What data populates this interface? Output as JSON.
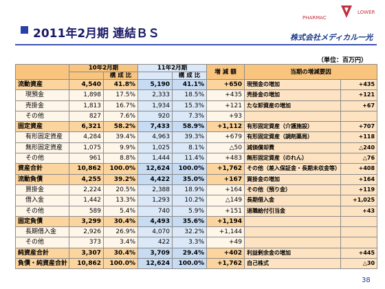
{
  "header": {
    "title": "2011年2月期 連結ＢＳ",
    "logo_top": "PHARMAC",
    "logo_bottom": "LOWER",
    "company": "株式会社メディカル一光",
    "unit": "（単位：百万円）"
  },
  "table": {
    "columns": {
      "period_prev": "10年2月期",
      "ratio_prev": "構 成 比",
      "period_curr": "11年2月期",
      "ratio_curr": "構 成 比",
      "change": "増 減 額",
      "factors": "当期の増減要因"
    },
    "rows": [
      {
        "label": "流動資産",
        "prev": "4,540",
        "prev_ratio": "41.8%",
        "curr": "5,190",
        "curr_ratio": "41.1%",
        "change": "+650",
        "factor": "現預金の増加",
        "factor_amount": "+435"
      },
      {
        "label": "現預金",
        "prev": "1,898",
        "prev_ratio": "17.5%",
        "curr": "2,333",
        "curr_ratio": "18.5%",
        "change": "+435",
        "factor": "売掛金の増加",
        "factor_amount": "+121"
      },
      {
        "label": "売掛金",
        "prev": "1,813",
        "prev_ratio": "16.7%",
        "curr": "1,934",
        "curr_ratio": "15.3%",
        "change": "+121",
        "factor": "たな卸資産の増加",
        "factor_amount": "+67"
      },
      {
        "label": "その他",
        "prev": "827",
        "prev_ratio": "7.6%",
        "curr": "920",
        "curr_ratio": "7.3%",
        "change": "+93"
      },
      {
        "label": "固定資産",
        "prev": "6,321",
        "prev_ratio": "58.2%",
        "curr": "7,433",
        "curr_ratio": "58.9%",
        "change": "+1,112",
        "factor": "有形固定資産（介護施設）",
        "factor_amount": "+707"
      },
      {
        "label": "有形固定資産",
        "prev": "4,284",
        "prev_ratio": "39.4%",
        "curr": "4,963",
        "curr_ratio": "39.3%",
        "change": "+679",
        "factor": "有形固定資産（調剤薬局）",
        "factor_amount": "+118"
      },
      {
        "label": "無形固定資産",
        "prev": "1,075",
        "prev_ratio": "9.9%",
        "curr": "1,025",
        "curr_ratio": "8.1%",
        "change": "△50",
        "factor": "減価償却費",
        "factor_amount": "△240"
      },
      {
        "label": "その他",
        "prev": "961",
        "prev_ratio": "8.8%",
        "curr": "1,444",
        "curr_ratio": "11.4%",
        "change": "+483",
        "factor": "無形固定資産（のれん）",
        "factor_amount": "△76"
      },
      {
        "label": "資産合計",
        "prev": "10,862",
        "prev_ratio": "100.0%",
        "curr": "12,624",
        "curr_ratio": "100.0%",
        "change": "+1,762",
        "factor": "その他（差入保証金・長期未収金等）",
        "factor_amount": "+408"
      },
      {
        "label": "流動負債",
        "prev": "4,255",
        "prev_ratio": "39.2%",
        "curr": "4,422",
        "curr_ratio": "35.0%",
        "change": "+167",
        "factor": "買掛金の増加",
        "factor_amount": "+164"
      },
      {
        "label": "買掛金",
        "prev": "2,224",
        "prev_ratio": "20.5%",
        "curr": "2,388",
        "curr_ratio": "18.9%",
        "change": "+164",
        "factor": "その他（預り金）",
        "factor_amount": "+119"
      },
      {
        "label": "借入金",
        "prev": "1,442",
        "prev_ratio": "13.3%",
        "curr": "1,293",
        "curr_ratio": "10.2%",
        "change": "△149",
        "factor": "長期借入金",
        "factor_amount": "+1,025"
      },
      {
        "label": "その他",
        "prev": "589",
        "prev_ratio": "5.4%",
        "curr": "740",
        "curr_ratio": "5.9%",
        "change": "+151",
        "factor": "退職給付引当金",
        "factor_amount": "+43"
      },
      {
        "label": "固定負債",
        "prev": "3,299",
        "prev_ratio": "30.4%",
        "curr": "4,493",
        "curr_ratio": "35.6%",
        "change": "+1,194"
      },
      {
        "label": "長期借入金",
        "prev": "2,926",
        "prev_ratio": "26.9%",
        "curr": "4,070",
        "curr_ratio": "32.2%",
        "change": "+1,144"
      },
      {
        "label": "その他",
        "prev": "373",
        "prev_ratio": "3.4%",
        "curr": "422",
        "curr_ratio": "3.3%",
        "change": "+49"
      },
      {
        "label": "純資産合計",
        "prev": "3,307",
        "prev_ratio": "30.4%",
        "curr": "3,709",
        "curr_ratio": "29.4%",
        "change": "+402",
        "factor": "利益剰余金の増加",
        "factor_amount": "+445"
      },
      {
        "label": "負債・純資産合計",
        "prev": "10,862",
        "prev_ratio": "100.0%",
        "curr": "12,624",
        "curr_ratio": "100.0%",
        "change": "+1,762",
        "factor": "自己株式",
        "factor_amount": "△30"
      }
    ]
  },
  "footer": {
    "page": "38"
  }
}
